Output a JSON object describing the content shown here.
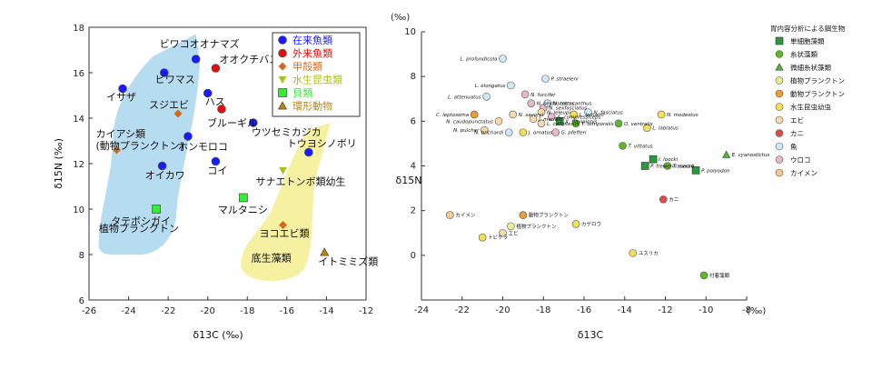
{
  "left_chart": {
    "xlabel": "δ13C (‰)",
    "ylabel": "δ15N (‰)",
    "xlim": [
      -26,
      -12
    ],
    "ylim": [
      6,
      18
    ],
    "xticks": [
      "-26",
      "-24",
      "-22",
      "-20",
      "-18",
      "-16",
      "-14",
      "-12"
    ],
    "yticks": [
      "6",
      "8",
      "10",
      "12",
      "14",
      "16",
      "18"
    ],
    "legend": [
      {
        "label": "在来魚類",
        "color": "#1a1aff",
        "shape": "circle"
      },
      {
        "label": "外来魚類",
        "color": "#e01010",
        "shape": "circle"
      },
      {
        "label": "甲殻類",
        "color": "#d2691e",
        "shape": "diamond"
      },
      {
        "label": "水生昆虫類",
        "color": "#a8c020",
        "shape": "tri-down"
      },
      {
        "label": "貝類",
        "color": "#33ee33",
        "shape": "square"
      },
      {
        "label": "環形動物",
        "color": "#b8860b",
        "shape": "tri-up"
      }
    ],
    "region_labels": [
      "植物プランクトン",
      "底生藻類"
    ],
    "points": [
      {
        "label": "ビワコオオナマズ",
        "x": -20.6,
        "y": 16.6,
        "cat": 0
      },
      {
        "label": "オオクチバス",
        "x": -19.6,
        "y": 16.2,
        "cat": 1
      },
      {
        "label": "ビワマス",
        "x": -22.2,
        "y": 16.0,
        "cat": 0
      },
      {
        "label": "イサザ",
        "x": -24.3,
        "y": 15.3,
        "cat": 0
      },
      {
        "label": "ハス",
        "x": -20.0,
        "y": 15.1,
        "cat": 0
      },
      {
        "label": "スジエビ",
        "x": -21.5,
        "y": 14.2,
        "cat": 2
      },
      {
        "label": "ブルーギル",
        "x": -19.3,
        "y": 14.4,
        "cat": 1
      },
      {
        "label": "ウツセミカジカ",
        "x": -17.7,
        "y": 13.8,
        "cat": 0
      },
      {
        "label": "カイアシ類\n(動物プランクトン)",
        "x": -24.6,
        "y": 12.6,
        "cat": 2
      },
      {
        "label": "ホンモロコ",
        "x": -21.0,
        "y": 13.2,
        "cat": 0
      },
      {
        "label": "コイ",
        "x": -19.6,
        "y": 12.1,
        "cat": 0
      },
      {
        "label": "オイカワ",
        "x": -22.3,
        "y": 11.9,
        "cat": 0
      },
      {
        "label": "トウヨシノボリ",
        "x": -14.9,
        "y": 12.5,
        "cat": 0
      },
      {
        "label": "サナエトンボ類幼生",
        "x": -16.2,
        "y": 11.7,
        "cat": 3
      },
      {
        "label": "タテボシガイ",
        "x": -22.6,
        "y": 10.0,
        "cat": 4
      },
      {
        "label": "マルタニシ",
        "x": -18.2,
        "y": 10.5,
        "cat": 4
      },
      {
        "label": "ヨコエビ類",
        "x": -16.2,
        "y": 9.3,
        "cat": 2
      },
      {
        "label": "イトミミズ類",
        "x": -14.1,
        "y": 8.1,
        "cat": 5
      }
    ]
  },
  "right_chart": {
    "ylabel": "δ15N",
    "xlabel": "δ13C",
    "xunit": "(‰)",
    "yunit": "(‰)",
    "xlim": [
      -24,
      -8
    ],
    "ylim": [
      -2,
      10
    ],
    "xticks": [
      "-24",
      "-22",
      "-20",
      "-18",
      "-16",
      "-14",
      "-12",
      "-10",
      "-8"
    ],
    "yticks": [
      "0",
      "2",
      "4",
      "6",
      "8",
      "10"
    ],
    "legend_title": "胃内容分析による餌生物",
    "legend": [
      {
        "label": "単細胞藻類",
        "color": "#2a9a3a",
        "shape": "square"
      },
      {
        "label": "糸状藻類",
        "color": "#5cb82a",
        "shape": "circle"
      },
      {
        "label": "微細糸状藻類",
        "color": "#4cbb3a",
        "shape": "tri-up"
      },
      {
        "label": "植物プランクトン",
        "color": "#e8ef8a",
        "shape": "circle"
      },
      {
        "label": "動物プランクトン",
        "color": "#f29a2a",
        "shape": "circle"
      },
      {
        "label": "水生昆虫幼虫",
        "color": "#f0e055",
        "shape": "circle"
      },
      {
        "label": "エビ",
        "color": "#f7d8a8",
        "shape": "circle"
      },
      {
        "label": "カニ",
        "color": "#e24a4a",
        "shape": "circle"
      },
      {
        "label": "魚",
        "color": "#cfe8f5",
        "shape": "circle"
      },
      {
        "label": "ウロコ",
        "color": "#e8b8c8",
        "shape": "circle"
      },
      {
        "label": "カイメン",
        "color": "#f7c98a",
        "shape": "circle"
      }
    ],
    "points": [
      {
        "label": "L. profundicola",
        "x": -20.0,
        "y": 8.8,
        "cat": 8
      },
      {
        "label": "L. elongatus",
        "x": -19.6,
        "y": 7.6,
        "cat": 8
      },
      {
        "label": "N. furcifer",
        "x": -18.9,
        "y": 7.2,
        "cat": 9
      },
      {
        "label": "P. straeleni",
        "x": -17.9,
        "y": 7.9,
        "cat": 8
      },
      {
        "label": "L. attenuatus",
        "x": -20.8,
        "y": 7.1,
        "cat": 8
      },
      {
        "label": "N. sexfasciatus",
        "x": -18.6,
        "y": 6.8,
        "cat": 9
      },
      {
        "label": "N. sexfasciatus2",
        "x": -18.0,
        "y": 6.6,
        "cat": 9
      },
      {
        "label": "N. tetracanthus",
        "x": -17.8,
        "y": 6.8,
        "cat": 8
      },
      {
        "label": "N. savoryi",
        "x": -19.5,
        "y": 6.3,
        "cat": 6
      },
      {
        "label": "C. leptosoma",
        "x": -21.4,
        "y": 6.3,
        "cat": 4
      },
      {
        "label": "N. caudopunctatus",
        "x": -20.2,
        "y": 6.0,
        "cat": 6
      },
      {
        "label": "N. pulcher",
        "x": -20.9,
        "y": 5.6,
        "cat": 6
      },
      {
        "label": "N. brichardi",
        "x": -19.7,
        "y": 5.5,
        "cat": 8
      },
      {
        "label": "J. ornatus",
        "x": -19.0,
        "y": 5.5,
        "cat": 5
      },
      {
        "label": "J. marlieri",
        "x": -18.5,
        "y": 6.1,
        "cat": 6
      },
      {
        "label": "A. compressiceps",
        "x": -17.6,
        "y": 6.2,
        "cat": 9
      },
      {
        "label": "N. leleupi",
        "x": -18.1,
        "y": 6.4,
        "cat": 6
      },
      {
        "label": "L. callipterus",
        "x": -18.1,
        "y": 5.9,
        "cat": 6
      },
      {
        "label": "G. pfefferi",
        "x": -17.4,
        "y": 5.5,
        "cat": 9
      },
      {
        "label": "X. flavipinnis",
        "x": -17.2,
        "y": 6.0,
        "cat": 0
      },
      {
        "label": "L. lemairii",
        "x": -16.5,
        "y": 6.3,
        "cat": 5
      },
      {
        "label": "N. fasciatus",
        "x": -15.8,
        "y": 6.4,
        "cat": 8
      },
      {
        "label": "T. temporalis",
        "x": -16.4,
        "y": 5.9,
        "cat": 1
      },
      {
        "label": "O. ventralis",
        "x": -14.3,
        "y": 5.9,
        "cat": 1
      },
      {
        "label": "N. modestus",
        "x": -12.2,
        "y": 6.3,
        "cat": 5
      },
      {
        "label": "L. labiatus",
        "x": -12.9,
        "y": 5.7,
        "cat": 5
      },
      {
        "label": "T. vittatus",
        "x": -14.1,
        "y": 4.9,
        "cat": 1
      },
      {
        "label": "E. cyanostictus",
        "x": -9.0,
        "y": 4.5,
        "cat": 2
      },
      {
        "label": "I. loocki",
        "x": -12.6,
        "y": 4.3,
        "cat": 0
      },
      {
        "label": "T. moorii",
        "x": -11.9,
        "y": 4.0,
        "cat": 1
      },
      {
        "label": "P. frewenfraserae",
        "x": -13.0,
        "y": 4.0,
        "cat": 0
      },
      {
        "label": "P. polyodon",
        "x": -10.5,
        "y": 3.8,
        "cat": 0
      },
      {
        "label": "カニ",
        "x": -12.1,
        "y": 2.5,
        "cat": 7
      },
      {
        "label": "動物プランクトン",
        "x": -19.0,
        "y": 1.8,
        "cat": 4
      },
      {
        "label": "カイメン",
        "x": -22.6,
        "y": 1.8,
        "cat": 10
      },
      {
        "label": "植物プランクトン",
        "x": -19.6,
        "y": 1.3,
        "cat": 3
      },
      {
        "label": "カゲロウ",
        "x": -16.4,
        "y": 1.4,
        "cat": 5
      },
      {
        "label": "トビケラ",
        "x": -21.0,
        "y": 0.8,
        "cat": 5
      },
      {
        "label": "エビ",
        "x": -20.0,
        "y": 1.0,
        "cat": 6
      },
      {
        "label": "ユスリカ",
        "x": -13.6,
        "y": 0.1,
        "cat": 5
      },
      {
        "label": "付着藻類",
        "x": -10.1,
        "y": -0.9,
        "cat": 1
      }
    ]
  }
}
